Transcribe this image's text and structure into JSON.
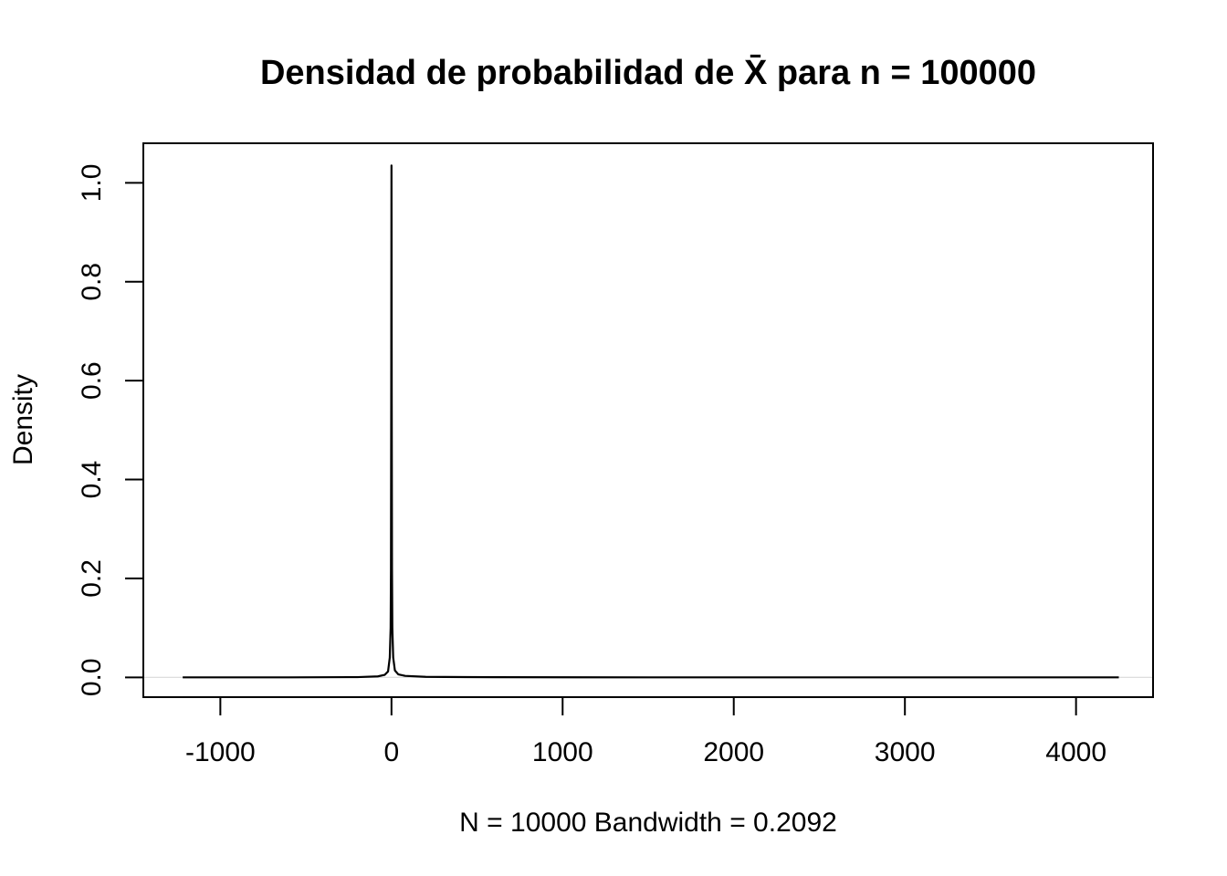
{
  "chart_data": {
    "type": "line",
    "title": "Densidad de probabilidad de X̄ para n = 100000",
    "xlabel": "N = 10000   Bandwidth = 0.2092",
    "ylabel": "Density",
    "xlim": [
      -1450,
      4450
    ],
    "ylim": [
      -0.04,
      1.08
    ],
    "x_ticks": [
      -1000,
      0,
      1000,
      2000,
      3000,
      4000
    ],
    "x_tick_labels": [
      "-1000",
      "0",
      "1000",
      "2000",
      "3000",
      "4000"
    ],
    "y_ticks": [
      0.0,
      0.2,
      0.4,
      0.6,
      0.8,
      1.0
    ],
    "y_tick_labels": [
      "0.0",
      "0.2",
      "0.4",
      "0.6",
      "0.8",
      "1.0"
    ],
    "grid": false,
    "baseline": 0,
    "series": [
      {
        "line_color": "#000000",
        "x": [
          -1220,
          -600,
          -200,
          -80,
          -40,
          -20,
          -10,
          -5,
          -3,
          -1.5,
          -0.5,
          0,
          0.5,
          1.5,
          3,
          5,
          10,
          20,
          40,
          80,
          200,
          600,
          1500,
          2500,
          3500,
          4250
        ],
        "y": [
          0.0,
          0.0,
          0.0005,
          0.002,
          0.005,
          0.012,
          0.04,
          0.1,
          0.22,
          0.55,
          0.9,
          1.035,
          0.9,
          0.55,
          0.22,
          0.1,
          0.04,
          0.014,
          0.006,
          0.003,
          0.001,
          0.0003,
          0.0,
          0.0,
          0.0,
          0.0
        ]
      }
    ]
  }
}
